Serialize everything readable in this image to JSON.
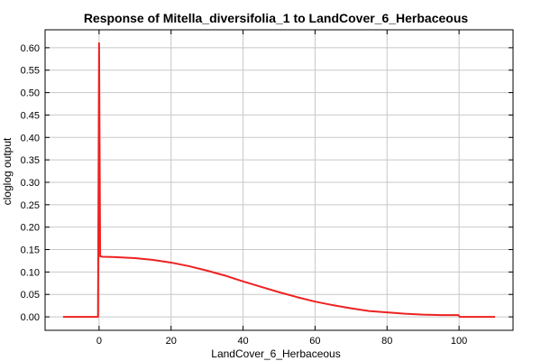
{
  "chart_data": {
    "type": "line",
    "title": "Response of Mitella_diversifolia_1 to LandCover_6_Herbaceous",
    "xlabel": "LandCover_6_Herbaceous",
    "ylabel": "cloglog output",
    "xlim": [
      -15,
      115
    ],
    "ylim": [
      -0.03,
      0.64
    ],
    "xticks": [
      0,
      20,
      40,
      60,
      80,
      100
    ],
    "xtick_labels": [
      "0",
      "20",
      "40",
      "60",
      "80",
      "100"
    ],
    "yticks": [
      0.0,
      0.05,
      0.1,
      0.15,
      0.2,
      0.25,
      0.3,
      0.35,
      0.4,
      0.45,
      0.5,
      0.55,
      0.6
    ],
    "ytick_labels": [
      "0.00",
      "0.05",
      "0.10",
      "0.15",
      "0.20",
      "0.25",
      "0.30",
      "0.35",
      "0.40",
      "0.45",
      "0.50",
      "0.55",
      "0.60"
    ],
    "grid": true,
    "series": [
      {
        "color": "#ee2222",
        "x": [
          -10,
          -0.3,
          0,
          0.3,
          1,
          5,
          10,
          15,
          20,
          25,
          30,
          35,
          40,
          45,
          50,
          55,
          60,
          65,
          70,
          75,
          80,
          85,
          90,
          95,
          99.8,
          100.2,
          105,
          110
        ],
        "y": [
          0.0,
          0.0,
          0.61,
          0.135,
          0.134,
          0.133,
          0.131,
          0.127,
          0.121,
          0.113,
          0.103,
          0.092,
          0.079,
          0.067,
          0.055,
          0.044,
          0.034,
          0.026,
          0.019,
          0.013,
          0.01,
          0.007,
          0.005,
          0.004,
          0.004,
          0.0,
          0.0,
          0.0
        ]
      }
    ]
  }
}
